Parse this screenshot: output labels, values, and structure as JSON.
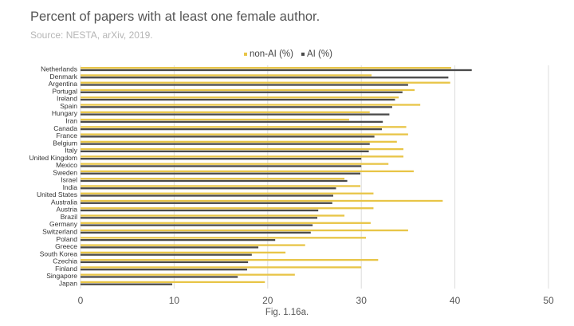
{
  "chart_data": {
    "type": "bar",
    "orientation": "horizontal",
    "title": "Percent of papers with at least one female author.",
    "subtitle": "Source: NESTA, arXiv, 2019.",
    "caption": "Fig. 1.16a.",
    "categories": [
      "Netherlands",
      "Denmark",
      "Argentina",
      "Portugal",
      "Ireland",
      "Spain",
      "Hungary",
      "Iran",
      "Canada",
      "France",
      "Belgium",
      "Italy",
      "United Kingdom",
      "Mexico",
      "Sweden",
      "Israel",
      "India",
      "United States",
      "Australia",
      "Austria",
      "Brazil",
      "Germany",
      "Switzerland",
      "Poland",
      "Greece",
      "South Korea",
      "Czechia",
      "Finland",
      "Singapore",
      "Japan"
    ],
    "series": [
      {
        "name": "non-AI (%)",
        "color": "#e8c547",
        "values": [
          39.6,
          31.1,
          39.5,
          35.7,
          34.0,
          36.3,
          30.9,
          28.7,
          34.8,
          35.0,
          33.8,
          34.5,
          34.5,
          32.9,
          35.6,
          28.2,
          29.9,
          31.3,
          38.7,
          31.3,
          28.2,
          31.0,
          35.0,
          30.5,
          24.0,
          21.9,
          31.8,
          30.0,
          22.9,
          19.7
        ]
      },
      {
        "name": "AI (%)",
        "color": "#4a4a4a",
        "values": [
          41.8,
          39.3,
          35.0,
          34.4,
          33.6,
          33.3,
          33.0,
          32.3,
          32.2,
          31.4,
          30.9,
          30.8,
          30.0,
          30.0,
          29.9,
          28.5,
          27.3,
          27.0,
          26.9,
          25.4,
          25.3,
          24.8,
          24.6,
          20.8,
          19.0,
          18.3,
          17.9,
          17.8,
          16.8,
          9.8
        ]
      }
    ],
    "xlim": [
      0,
      50
    ],
    "xticks": [
      "0",
      "10",
      "20",
      "30",
      "40",
      "50"
    ],
    "grid": true,
    "legend_position": "top"
  }
}
